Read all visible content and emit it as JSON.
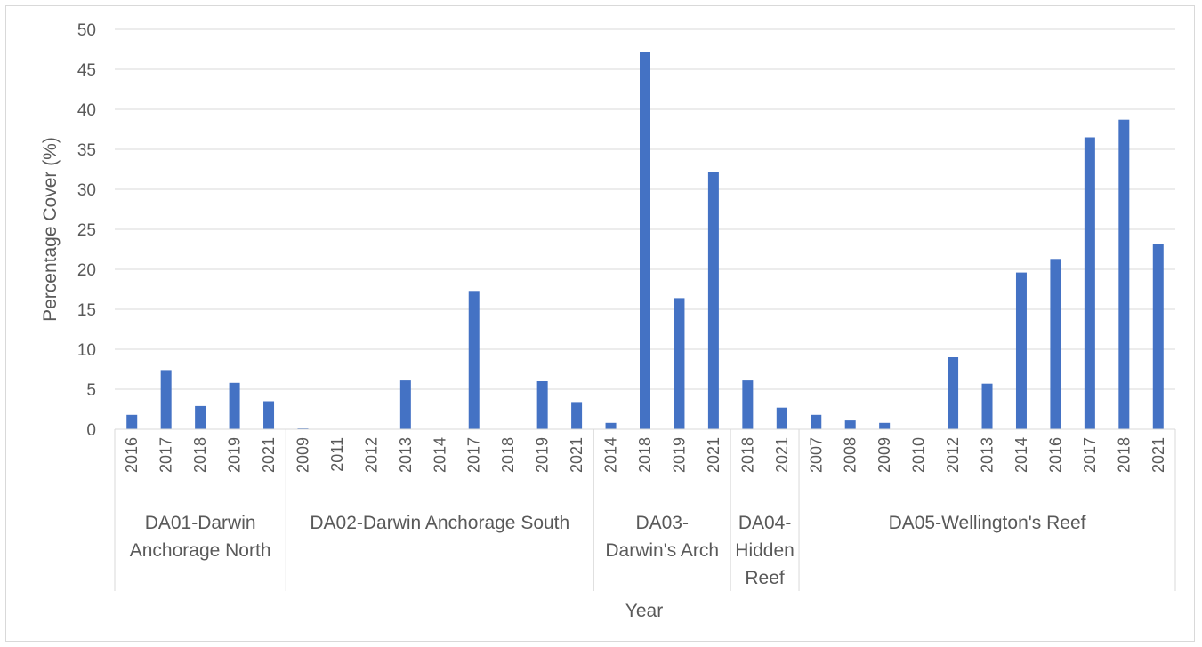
{
  "chart_data": {
    "type": "bar",
    "title": "",
    "xlabel": "Year",
    "ylabel": "Percentage Cover (%)",
    "ylim": [
      0,
      50
    ],
    "yticks": [
      0,
      5,
      10,
      15,
      20,
      25,
      30,
      35,
      40,
      45,
      50
    ],
    "grid": true,
    "legend": "none",
    "bar_color": "#4472c4",
    "groups": [
      {
        "name": "DA01-Darwin Anchorage North",
        "name_lines": [
          "DA01-Darwin",
          "Anchorage North"
        ],
        "years": [
          "2016",
          "2017",
          "2018",
          "2019",
          "2021"
        ],
        "values": [
          1.8,
          7.4,
          2.9,
          5.8,
          3.5
        ]
      },
      {
        "name": "DA02-Darwin Anchorage South",
        "name_lines": [
          "DA02-Darwin Anchorage South"
        ],
        "years": [
          "2009",
          "2011",
          "2012",
          "2013",
          "2014",
          "2017",
          "2018",
          "2019",
          "2021"
        ],
        "values": [
          0.1,
          0,
          0,
          6.1,
          0,
          17.3,
          0,
          6.0,
          3.4
        ]
      },
      {
        "name": "DA03-Darwin's Arch",
        "name_lines": [
          "DA03-",
          "Darwin's Arch"
        ],
        "years": [
          "2014",
          "2018",
          "2019",
          "2021"
        ],
        "values": [
          0.8,
          47.2,
          16.4,
          32.2
        ]
      },
      {
        "name": "DA04-Hidden Reef",
        "name_lines": [
          "DA04-",
          "Hidden",
          "Reef"
        ],
        "years": [
          "2018",
          "2021"
        ],
        "values": [
          6.1,
          2.7
        ]
      },
      {
        "name": "DA05-Wellington's Reef",
        "name_lines": [
          "DA05-Wellington's Reef"
        ],
        "years": [
          "2007",
          "2008",
          "2009",
          "2010",
          "2012",
          "2013",
          "2014",
          "2016",
          "2017",
          "2018",
          "2021"
        ],
        "values": [
          1.8,
          1.1,
          0.8,
          0,
          9.0,
          5.7,
          19.6,
          21.3,
          36.5,
          38.7,
          23.2
        ]
      }
    ]
  }
}
